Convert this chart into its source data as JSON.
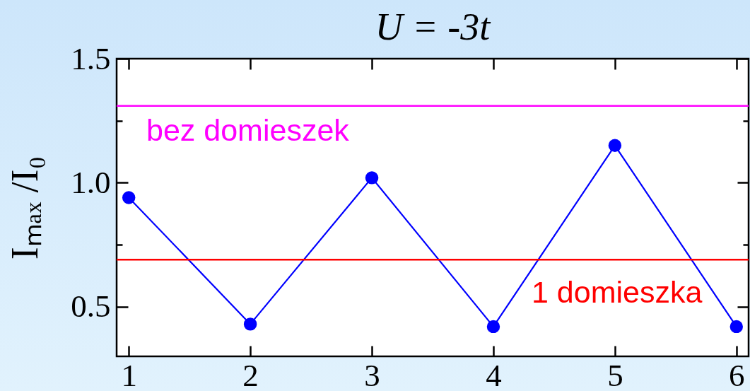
{
  "chart_data": {
    "type": "line",
    "title": "U = -3t",
    "ylabel": "Iₘₐₓ /I₀",
    "x": [
      1,
      2,
      3,
      4,
      5,
      6
    ],
    "series": [
      {
        "color": "#0000ff",
        "values": [
          0.94,
          0.43,
          1.02,
          0.42,
          1.15,
          0.42
        ]
      }
    ],
    "xlim": [
      0.9,
      6.1
    ],
    "xticks": [
      1,
      2,
      3,
      4,
      5,
      6
    ],
    "ylim": [
      0.3,
      1.5
    ],
    "yticks": [
      0.5,
      {
        "value": 0.75,
        "label": null
      },
      {
        "value": 1,
        "label": "1.0"
      },
      {
        "value": 1.25,
        "label": null
      },
      1.5
    ],
    "ref_lines": [
      {
        "axis": "y",
        "value": 1.31,
        "label": "bez domieszek",
        "color": "#ff00ff"
      },
      {
        "axis": "y",
        "value": 0.69,
        "label": "1 domieszka",
        "color": "#ff0000"
      }
    ],
    "marker": "circle",
    "line_style": "solid",
    "grid": false
  }
}
